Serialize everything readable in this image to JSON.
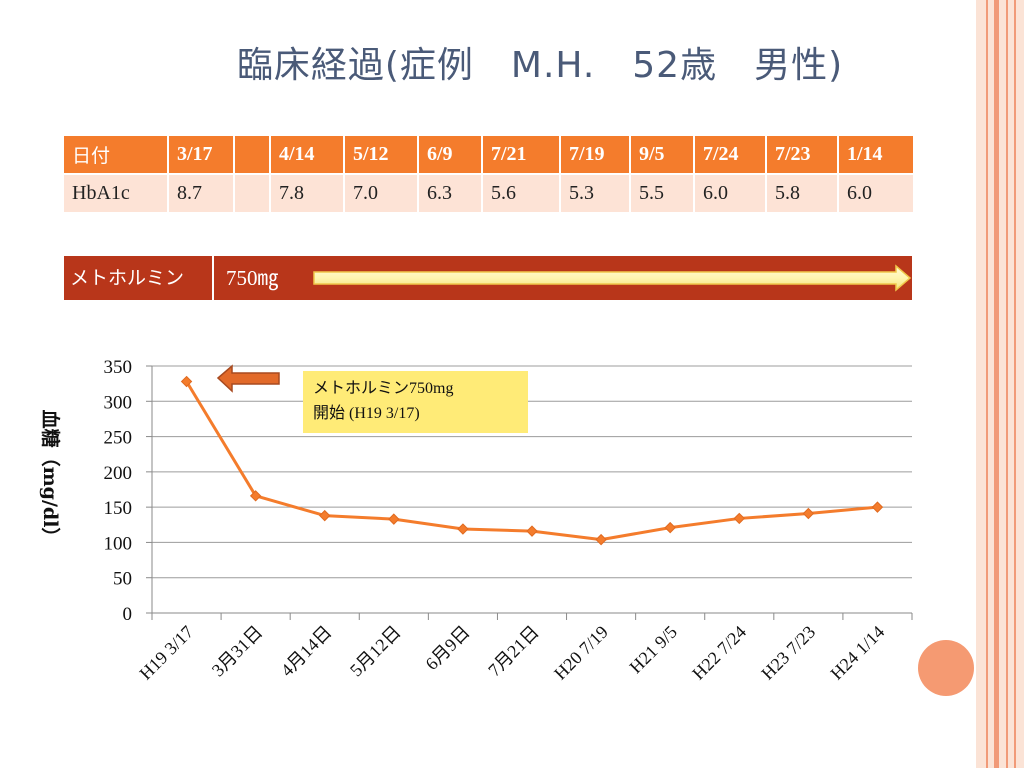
{
  "title": "臨床経過(症例　M.H.　52歳　男性)",
  "hba1c_table": {
    "header": [
      "日付",
      "3/17",
      "",
      "4/14",
      "5/12",
      "6/9",
      "7/21",
      "7/19",
      "9/5",
      "7/24",
      "7/23",
      "1/14"
    ],
    "row": [
      "HbA1c",
      "8.7",
      "",
      "7.8",
      "7.0",
      "6.3",
      "5.6",
      "5.3",
      "5.5",
      "6.0",
      "5.8",
      "6.0"
    ]
  },
  "medication": {
    "name": "メトホルミン",
    "dose": "750㎎"
  },
  "callout": {
    "line1": "メトホルミン750mg",
    "line2": "開始 (H19 3/17)"
  },
  "colors": {
    "accent": "#f47c2c",
    "line": "#f47c2c",
    "bar": "#b8361a",
    "callout": "#ffeb77"
  },
  "chart_data": {
    "type": "line",
    "title": "",
    "xlabel": "",
    "ylabel": "血糖（mg/dl）",
    "categories": [
      "H19 3/17",
      "3月31日",
      "4月14日",
      "5月12日",
      "6月9日",
      "7月21日",
      "H20 7/19",
      "H21 9/5",
      "H22 7/24",
      "H23 7/23",
      "H24 1/14"
    ],
    "values": [
      328,
      166,
      138,
      133,
      119,
      116,
      104,
      121,
      134,
      141,
      150
    ],
    "ylim": [
      0,
      350
    ],
    "yticks": [
      0,
      50,
      100,
      150,
      200,
      250,
      300,
      350
    ],
    "grid": true,
    "legend": "none"
  }
}
